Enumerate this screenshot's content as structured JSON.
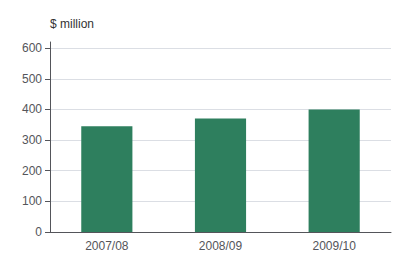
{
  "chart_data": {
    "type": "bar",
    "ylabel": "$ million",
    "categories": [
      "2007/08",
      "2008/09",
      "2009/10"
    ],
    "values": [
      345,
      370,
      400
    ],
    "color": "#2e7f5e",
    "ylim": [
      0,
      620
    ],
    "yticks": [
      0,
      100,
      200,
      300,
      400,
      500,
      600
    ],
    "grid": true
  }
}
